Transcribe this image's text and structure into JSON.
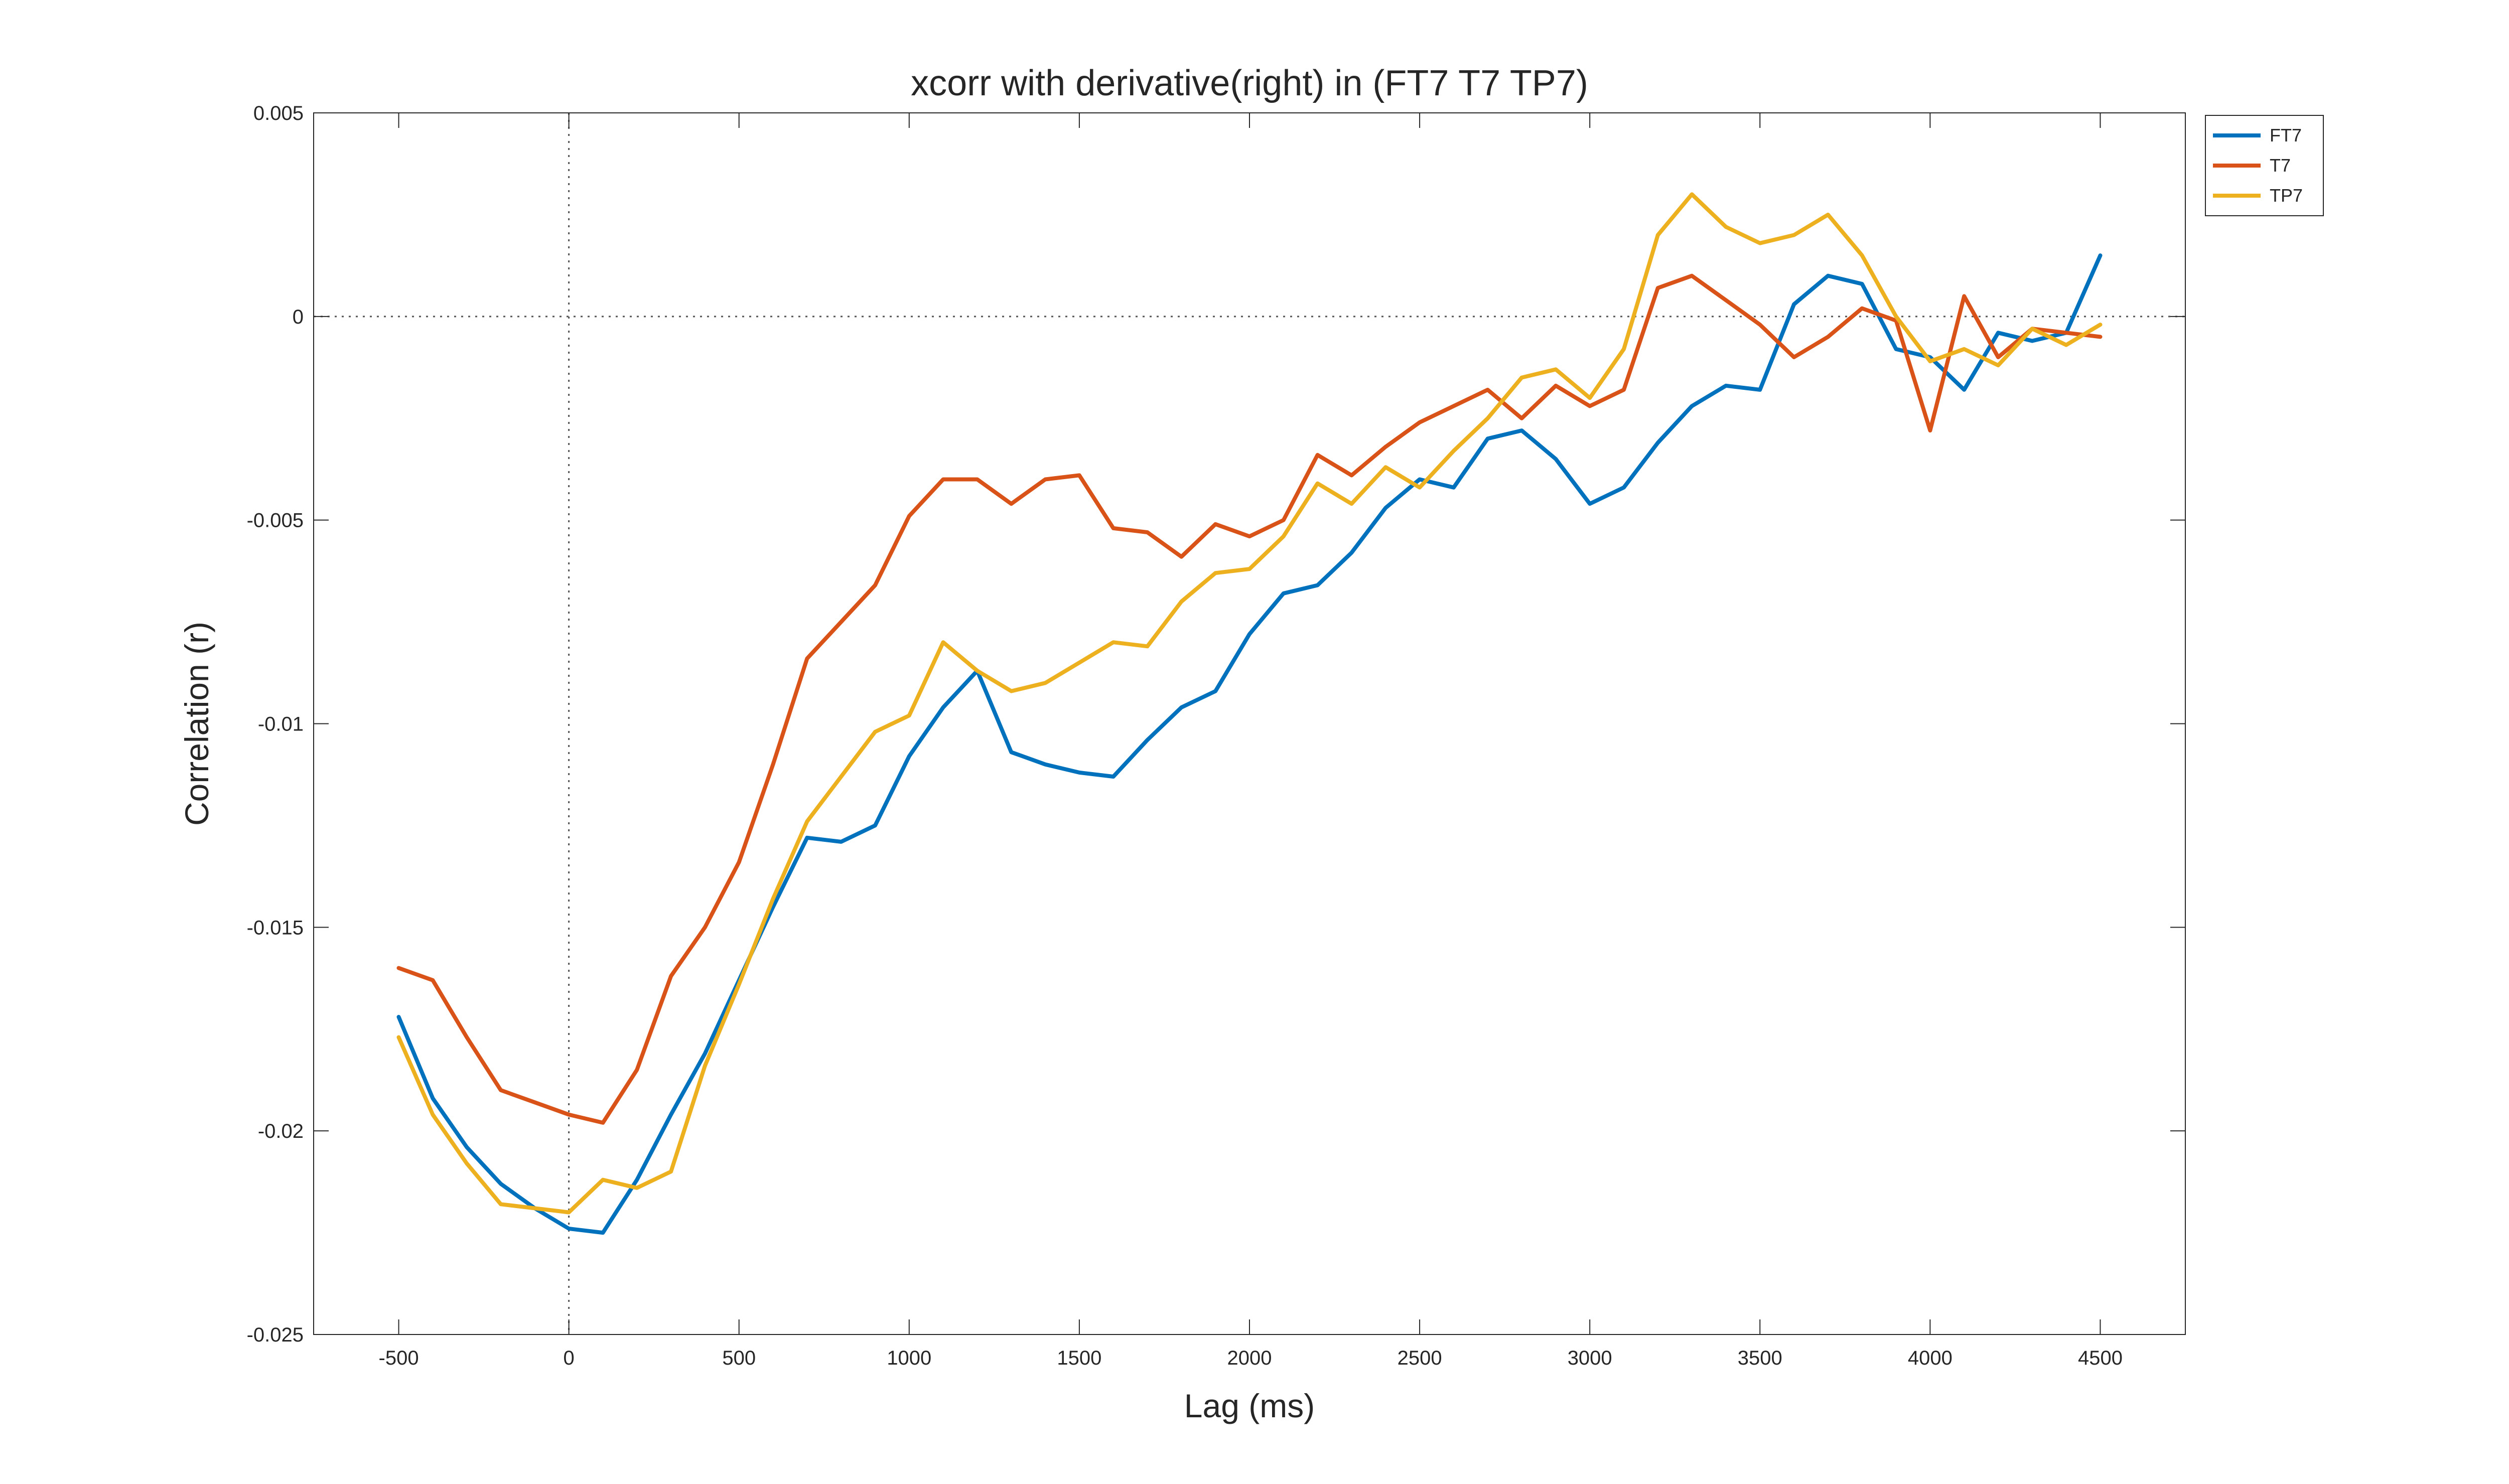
{
  "chart_data": {
    "type": "line",
    "title": "xcorr with derivative(right) in (FT7 T7 TP7)",
    "xlabel": "Lag (ms)",
    "ylabel": "Correlation (r)",
    "xlim": [
      -750,
      4750
    ],
    "ylim": [
      -0.025,
      0.005
    ],
    "xticks": [
      -500,
      0,
      500,
      1000,
      1500,
      2000,
      2500,
      3000,
      3500,
      4000,
      4500
    ],
    "xtick_labels": [
      "-500",
      "0",
      "500",
      "1000",
      "1500",
      "2000",
      "2500",
      "3000",
      "3500",
      "4000",
      "4500"
    ],
    "yticks": [
      -0.025,
      -0.02,
      -0.015,
      -0.01,
      -0.005,
      0,
      0.005
    ],
    "ytick_labels": [
      "-0.025",
      "-0.02",
      "-0.015",
      "-0.01",
      "-0.005",
      "0",
      "0.005"
    ],
    "grid": false,
    "reference_lines": {
      "x": 0,
      "y": 0
    },
    "legend_position": "outside top-right",
    "x": [
      -500,
      -400,
      -300,
      -200,
      -100,
      0,
      100,
      200,
      300,
      400,
      500,
      600,
      700,
      800,
      900,
      1000,
      1100,
      1200,
      1300,
      1400,
      1500,
      1600,
      1700,
      1800,
      1900,
      2000,
      2100,
      2200,
      2300,
      2400,
      2500,
      2600,
      2700,
      2800,
      2900,
      3000,
      3100,
      3200,
      3300,
      3400,
      3500,
      3600,
      3700,
      3800,
      3900,
      4000,
      4100,
      4200,
      4300,
      4400,
      4500
    ],
    "series": [
      {
        "name": "FT7",
        "color": "#0072BD",
        "values": [
          -0.0172,
          -0.0192,
          -0.0204,
          -0.0213,
          -0.0219,
          -0.0224,
          -0.0225,
          -0.0212,
          -0.0196,
          -0.0181,
          -0.0163,
          -0.0145,
          -0.0128,
          -0.0129,
          -0.0125,
          -0.0108,
          -0.0096,
          -0.0087,
          -0.0107,
          -0.011,
          -0.0112,
          -0.0113,
          -0.0104,
          -0.0096,
          -0.0092,
          -0.0078,
          -0.0068,
          -0.0066,
          -0.0058,
          -0.0047,
          -0.004,
          -0.0042,
          -0.003,
          -0.0028,
          -0.0035,
          -0.0046,
          -0.0042,
          -0.0031,
          -0.0022,
          -0.0017,
          -0.0018,
          0.0003,
          0.001,
          0.0008,
          -0.0008,
          -0.001,
          -0.0018,
          -0.0004,
          -0.0006,
          -0.0004,
          0.0015
        ]
      },
      {
        "name": "T7",
        "color": "#D95319",
        "values": [
          -0.016,
          -0.0163,
          -0.0177,
          -0.019,
          -0.0193,
          -0.0196,
          -0.0198,
          -0.0185,
          -0.0162,
          -0.015,
          -0.0134,
          -0.011,
          -0.0084,
          -0.0075,
          -0.0066,
          -0.0049,
          -0.004,
          -0.004,
          -0.0046,
          -0.004,
          -0.0039,
          -0.0052,
          -0.0053,
          -0.0059,
          -0.0051,
          -0.0054,
          -0.005,
          -0.0034,
          -0.0039,
          -0.0032,
          -0.0026,
          -0.0022,
          -0.0018,
          -0.0025,
          -0.0017,
          -0.0022,
          -0.0018,
          0.0007,
          0.001,
          0.0004,
          -0.0002,
          -0.001,
          -0.0005,
          0.0002,
          -0.0001,
          -0.0028,
          0.0005,
          -0.001,
          -0.0003,
          -0.0004,
          -0.0005
        ]
      },
      {
        "name": "TP7",
        "color": "#EDB120",
        "values": [
          -0.0177,
          -0.0196,
          -0.0208,
          -0.0218,
          -0.0219,
          -0.022,
          -0.0212,
          -0.0214,
          -0.021,
          -0.0184,
          -0.0164,
          -0.0143,
          -0.0124,
          -0.0113,
          -0.0102,
          -0.0098,
          -0.008,
          -0.0087,
          -0.0092,
          -0.009,
          -0.0085,
          -0.008,
          -0.0081,
          -0.007,
          -0.0063,
          -0.0062,
          -0.0054,
          -0.0041,
          -0.0046,
          -0.0037,
          -0.0042,
          -0.0033,
          -0.0025,
          -0.0015,
          -0.0013,
          -0.002,
          -0.0008,
          0.002,
          0.003,
          0.0022,
          0.0018,
          0.002,
          0.0025,
          0.0015,
          0.0,
          -0.0011,
          -0.0008,
          -0.0012,
          -0.0003,
          -0.0007,
          -0.0002
        ]
      }
    ]
  }
}
